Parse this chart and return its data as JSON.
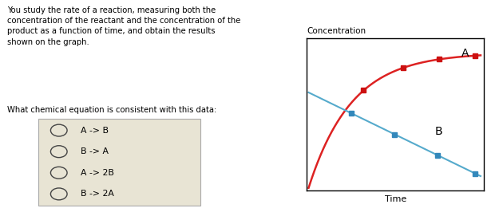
{
  "question_text": "You study the rate of a reaction, measuring both the\nconcentration of the reactant and the concentration of the\nproduct as a function of time, and obtain the results\nshown on the graph.",
  "question2_text": "What chemical equation is consistent with this data:",
  "choices": [
    "A -> B",
    "B -> A",
    "A -> 2B",
    "B -> 2A"
  ],
  "graph_title": "Concentration",
  "graph_xlabel": "Time",
  "curve_A_label": "A",
  "curve_B_label": "B",
  "curve_A_color": "#dd2222",
  "curve_B_color": "#55aacc",
  "marker_color_A": "#cc1111",
  "marker_color_B": "#3388bb",
  "bg_color": "#ffffff",
  "choice_box_color": "#e8e4d4",
  "choice_box_edge": "#aaaaaa",
  "text_color": "#000000",
  "fig_width": 6.25,
  "fig_height": 2.66,
  "dpi": 100
}
